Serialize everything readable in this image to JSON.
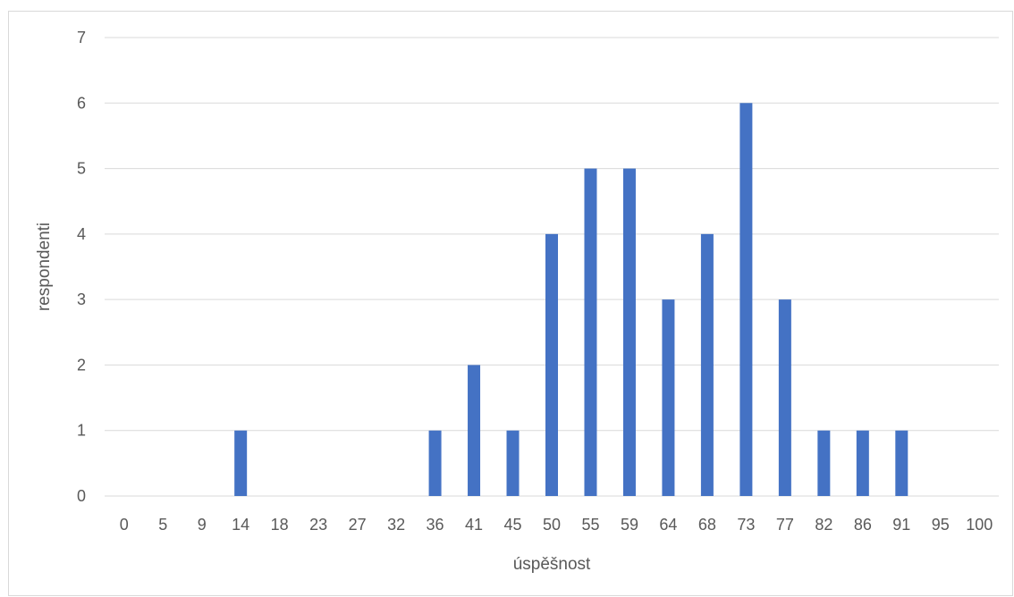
{
  "chart_data": {
    "type": "bar",
    "title": "",
    "xlabel": "úspěšnost",
    "ylabel": "respondenti",
    "categories": [
      "0",
      "5",
      "9",
      "14",
      "18",
      "23",
      "27",
      "32",
      "36",
      "41",
      "45",
      "50",
      "55",
      "59",
      "64",
      "68",
      "73",
      "77",
      "82",
      "86",
      "91",
      "95",
      "100"
    ],
    "values": [
      0,
      0,
      0,
      1,
      0,
      0,
      0,
      0,
      1,
      2,
      1,
      4,
      5,
      5,
      3,
      4,
      6,
      3,
      1,
      1,
      1,
      0,
      0
    ],
    "ylim": [
      0,
      7
    ],
    "yticks": [
      "0",
      "1",
      "2",
      "3",
      "4",
      "5",
      "6",
      "7"
    ],
    "grid": true,
    "legend": "none",
    "bar_color": "#4472c4",
    "grid_color": "#d9d9d9"
  }
}
